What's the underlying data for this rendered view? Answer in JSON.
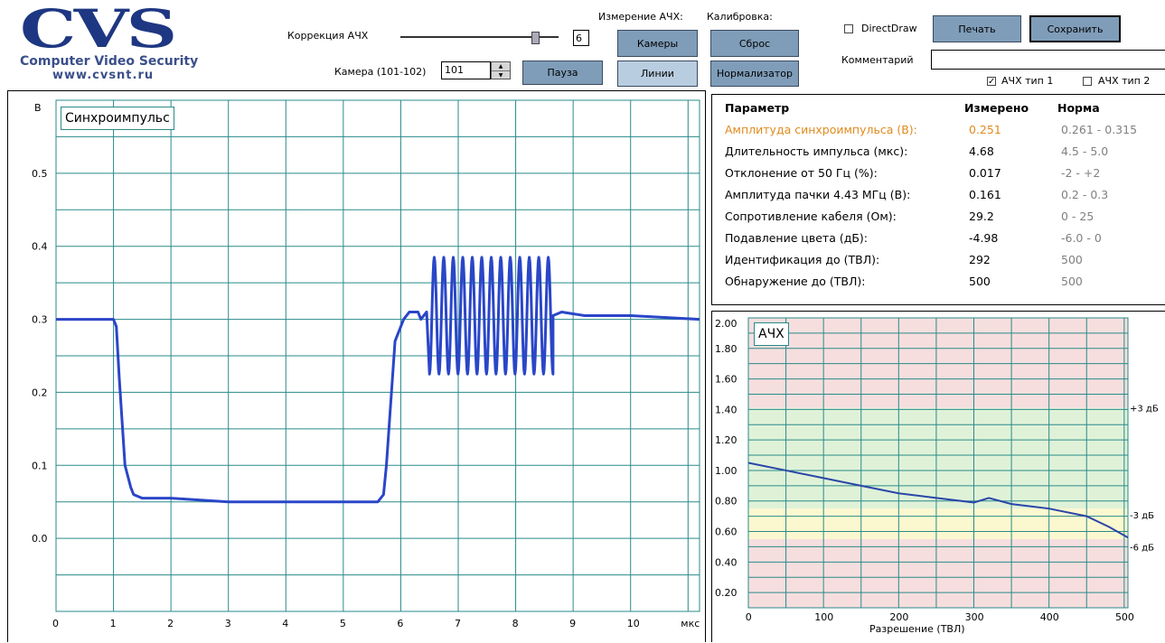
{
  "logo": {
    "main": "CVS",
    "subtitle": "Computer Video Security",
    "url": "www.cvsnt.ru"
  },
  "toolbar": {
    "correction_label": "Коррекция АЧХ",
    "correction_value": "6",
    "correction_slider_level": 0.85,
    "camera_label": "Камера (101-102)",
    "camera_value": "101",
    "pause_label": "Пауза",
    "measure_label": "Измерение АЧХ:",
    "cameras_label": "Камеры",
    "lines_label": "Линии",
    "calibration_label": "Калибровка:",
    "reset_label": "Сброс",
    "normalizer_label": "Нормализатор",
    "directdraw_label": "DirectDraw",
    "directdraw_checked": false,
    "print_label": "Печать",
    "save_label": "Сохранить",
    "comment_label": "Комментарий",
    "comment_value": "",
    "afc_type1_label": "АЧХ тип 1",
    "afc_type1_checked": true,
    "afc_type2_label": "АЧХ тип 2",
    "afc_type2_checked": false
  },
  "sync_chart": {
    "title": "Синхроимпульс",
    "ylabel": "В",
    "xlabel": "мкс",
    "x_ticks": [
      "0",
      "1",
      "2",
      "3",
      "4",
      "5",
      "6",
      "7",
      "8",
      "9",
      "10"
    ],
    "y_ticks": [
      "0.5",
      "0.4",
      "0.3",
      "0.2",
      "0.1",
      "0.0"
    ]
  },
  "params": {
    "headers": {
      "param": "Параметр",
      "measured": "Измерено",
      "norm": "Норма"
    },
    "rows": [
      {
        "name": "Амплитуда синхроимпульса (В):",
        "measured": "0.251",
        "norm": "0.261 - 0.315",
        "highlight": true
      },
      {
        "name": "Длительность импульса (мкс):",
        "measured": "4.68",
        "norm": "4.5 - 5.0",
        "highlight": false
      },
      {
        "name": "Отклонение от 50 Гц (%):",
        "measured": "0.017",
        "norm": "-2 - +2",
        "highlight": false
      },
      {
        "name": "Амплитуда пачки 4.43 МГц (В):",
        "measured": "0.161",
        "norm": "0.2 - 0.3",
        "highlight": false
      },
      {
        "name": "Сопротивление кабеля (Ом):",
        "measured": "29.2",
        "norm": "0 - 25",
        "highlight": false
      },
      {
        "name": "Подавление цвета (дБ):",
        "measured": "-4.98",
        "norm": "-6.0 - 0",
        "highlight": false
      },
      {
        "name": "Идентификация до (ТВЛ):",
        "measured": "292",
        "norm": "500",
        "highlight": false
      },
      {
        "name": "Обнаружение до (ТВЛ):",
        "measured": "500",
        "norm": "500",
        "highlight": false
      }
    ]
  },
  "afc_chart": {
    "title": "АЧХ",
    "xlabel": "Разрешение (ТВЛ)",
    "x_ticks": [
      "0",
      "100",
      "200",
      "300",
      "400",
      "500"
    ],
    "y_ticks": [
      "2.00",
      "1.80",
      "1.60",
      "1.40",
      "1.20",
      "1.00",
      "0.80",
      "0.60",
      "0.40",
      "0.20"
    ],
    "db_labels": [
      "+3 дБ",
      "-3 дБ",
      "-6 дБ"
    ]
  },
  "colors": {
    "trace": "#2a46c8",
    "grid": "#2a8a8a",
    "highlight_text": "#e08a1e",
    "norm_text": "#808080",
    "band_red": "#f6dede",
    "band_green": "#dff2d8",
    "band_yellow": "#fbf8cf",
    "button": "#7f9db9"
  },
  "chart_data": [
    {
      "type": "line",
      "title": "Синхроимпульс",
      "xlabel": "мкс",
      "ylabel": "В",
      "xlim": [
        0,
        11.2
      ],
      "ylim": [
        -0.1,
        0.6
      ],
      "grid": true,
      "series": [
        {
          "values_desc": "sync pulse waveform",
          "x": [
            0,
            0.9,
            1.0,
            1.05,
            1.1,
            1.2,
            1.3,
            1.35,
            1.5,
            2,
            3,
            4,
            5,
            5.6,
            5.7,
            5.75,
            5.9,
            6.0,
            6.05,
            6.15,
            6.3,
            6.35,
            6.45
          ],
          "y": [
            0.3,
            0.3,
            0.3,
            0.29,
            0.22,
            0.1,
            0.07,
            0.06,
            0.055,
            0.055,
            0.05,
            0.05,
            0.05,
            0.05,
            0.06,
            0.1,
            0.27,
            0.29,
            0.3,
            0.31,
            0.31,
            0.3,
            0.31
          ]
        }
      ],
      "burst": {
        "x_start": 6.5,
        "x_end": 8.65,
        "center": 0.305,
        "high": 0.385,
        "low": 0.225,
        "cycles": 13
      },
      "tail": {
        "x": [
          8.65,
          8.8,
          9.2,
          10,
          11.2
        ],
        "y": [
          0.305,
          0.31,
          0.305,
          0.305,
          0.3
        ]
      }
    },
    {
      "type": "line",
      "title": "АЧХ",
      "xlabel": "Разрешение (ТВЛ)",
      "xlim": [
        0,
        505
      ],
      "ylim": [
        0.1,
        2.0
      ],
      "grid": true,
      "bands": [
        {
          "from": 1.41,
          "to": 2.0,
          "color": "band_red"
        },
        {
          "from": 0.75,
          "to": 1.41,
          "color": "band_green"
        },
        {
          "from": 0.71,
          "to": 0.75,
          "color": "band_yellow"
        },
        {
          "from": 0.55,
          "to": 0.71,
          "color": "band_yellow"
        },
        {
          "from": 0.1,
          "to": 0.55,
          "color": "band_red"
        }
      ],
      "series": [
        {
          "x": [
            0,
            50,
            100,
            150,
            200,
            250,
            300,
            320,
            350,
            400,
            450,
            480,
            505
          ],
          "y": [
            1.05,
            1.0,
            0.95,
            0.9,
            0.85,
            0.82,
            0.79,
            0.82,
            0.78,
            0.75,
            0.7,
            0.63,
            0.56
          ]
        }
      ]
    }
  ]
}
